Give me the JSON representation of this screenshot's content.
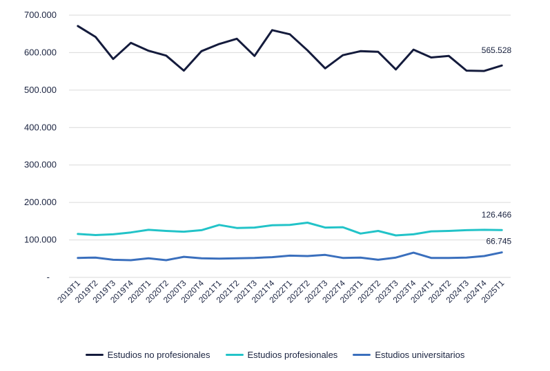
{
  "chart_data": {
    "type": "line",
    "title": "",
    "xlabel": "",
    "ylabel": "",
    "ylim": [
      0,
      700000
    ],
    "y_ticks": [
      {
        "value": 0,
        "label": "-"
      },
      {
        "value": 100000,
        "label": "100.000"
      },
      {
        "value": 200000,
        "label": "200.000"
      },
      {
        "value": 300000,
        "label": "300.000"
      },
      {
        "value": 400000,
        "label": "400.000"
      },
      {
        "value": 500000,
        "label": "500.000"
      },
      {
        "value": 600000,
        "label": "600.000"
      },
      {
        "value": 700000,
        "label": "700.000"
      }
    ],
    "grid": true,
    "legend_position": "bottom",
    "categories": [
      "2019T1",
      "2019T2",
      "2019T3",
      "2019T4",
      "2020T1",
      "2020T2",
      "2020T3",
      "2020T4",
      "2021T1",
      "2021T2",
      "2021T3",
      "2021T4",
      "2022T1",
      "2022T2",
      "2022T3",
      "2022T4",
      "2023T1",
      "2023T2",
      "2023T3",
      "2023T4",
      "2024T1",
      "2024T2",
      "2024T3",
      "2024T4",
      "2025T1"
    ],
    "series": [
      {
        "name": "Estudios no profesionales",
        "color": "#141b3c",
        "end_label": "565.528",
        "values": [
          671000,
          642000,
          583000,
          626000,
          605000,
          592000,
          552000,
          604000,
          623000,
          637000,
          591000,
          660000,
          649000,
          606000,
          558000,
          593000,
          604000,
          602000,
          555000,
          608000,
          587000,
          591000,
          552000,
          551000,
          565528
        ]
      },
      {
        "name": "Estudios profesionales",
        "color": "#22c3c8",
        "end_label": "126.466",
        "values": [
          116000,
          113000,
          115000,
          120000,
          127000,
          124000,
          122000,
          126000,
          140000,
          132000,
          133000,
          139000,
          140000,
          146000,
          133000,
          134000,
          117000,
          124000,
          112000,
          115000,
          123000,
          124000,
          126000,
          127000,
          126466
        ]
      },
      {
        "name": "Estudios universitarios",
        "color": "#3a6fbd",
        "end_label": "66.745",
        "values": [
          52000,
          53000,
          47000,
          46000,
          51000,
          46000,
          55000,
          51000,
          50000,
          51000,
          52000,
          54000,
          58000,
          57000,
          60000,
          52000,
          53000,
          47000,
          53000,
          66000,
          52000,
          52000,
          53000,
          57000,
          66745
        ]
      }
    ]
  }
}
